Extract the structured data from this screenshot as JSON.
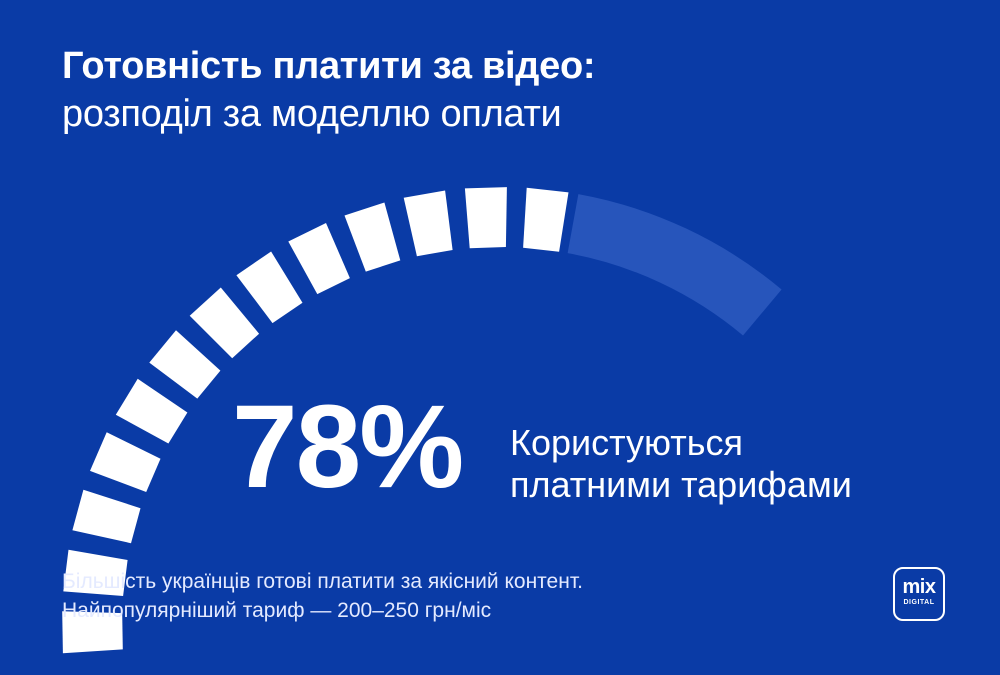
{
  "title": {
    "line1": "Готовність платити за відео:",
    "line2": "розподіл за моделлю оплати"
  },
  "chart_data": {
    "type": "gauge",
    "value": 78,
    "unit": "%",
    "value_label_lines": [
      "Користуються",
      "платними тарифами"
    ],
    "max": 100,
    "segments_filled": 13,
    "colors": {
      "background": "#0a3ba6",
      "filled": "#ffffff",
      "track": "#2755bb"
    }
  },
  "footnote": {
    "line1": "Більшість українців готові платити за якісний контент.",
    "line2": "Найпопулярніший тариф — 200–250 грн/міс"
  },
  "logo": {
    "word": "mix",
    "sub": "DIGITAL"
  }
}
